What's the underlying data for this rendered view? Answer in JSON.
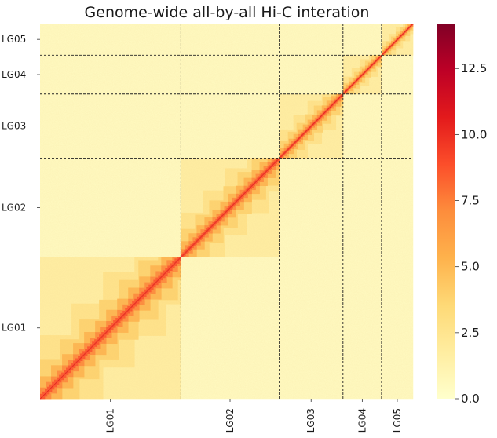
{
  "chart_data": {
    "type": "heatmap",
    "title": "Genome-wide all-by-all Hi-C interation",
    "xlabel": "",
    "ylabel": "",
    "groups": [
      {
        "label": "LG01",
        "start": 0,
        "end": 179
      },
      {
        "label": "LG02",
        "start": 179,
        "end": 304
      },
      {
        "label": "LG03",
        "start": 304,
        "end": 385
      },
      {
        "label": "LG04",
        "start": 385,
        "end": 434
      },
      {
        "label": "LG05",
        "start": 434,
        "end": 474
      }
    ],
    "bins_total": 474,
    "colorbar": {
      "min": 0,
      "max": 14.2,
      "ticks": [
        0.0,
        2.5,
        5.0,
        7.5,
        10.0,
        12.5
      ],
      "tick_labels": [
        "0.0",
        "2.5",
        "5.0",
        "7.5",
        "10.0",
        "12.5"
      ],
      "colormap": "YlOrRd",
      "colors": [
        "#ffffcc",
        "#ffeda0",
        "#fed976",
        "#feb24c",
        "#fd8d3c",
        "#fc4e2a",
        "#e31a1c",
        "#bd0026",
        "#800026"
      ]
    },
    "diagonal_value": 10.5,
    "background_value": 0.4,
    "boundary_line_style": "dashed",
    "origin": "bottom-left",
    "grid": false
  }
}
